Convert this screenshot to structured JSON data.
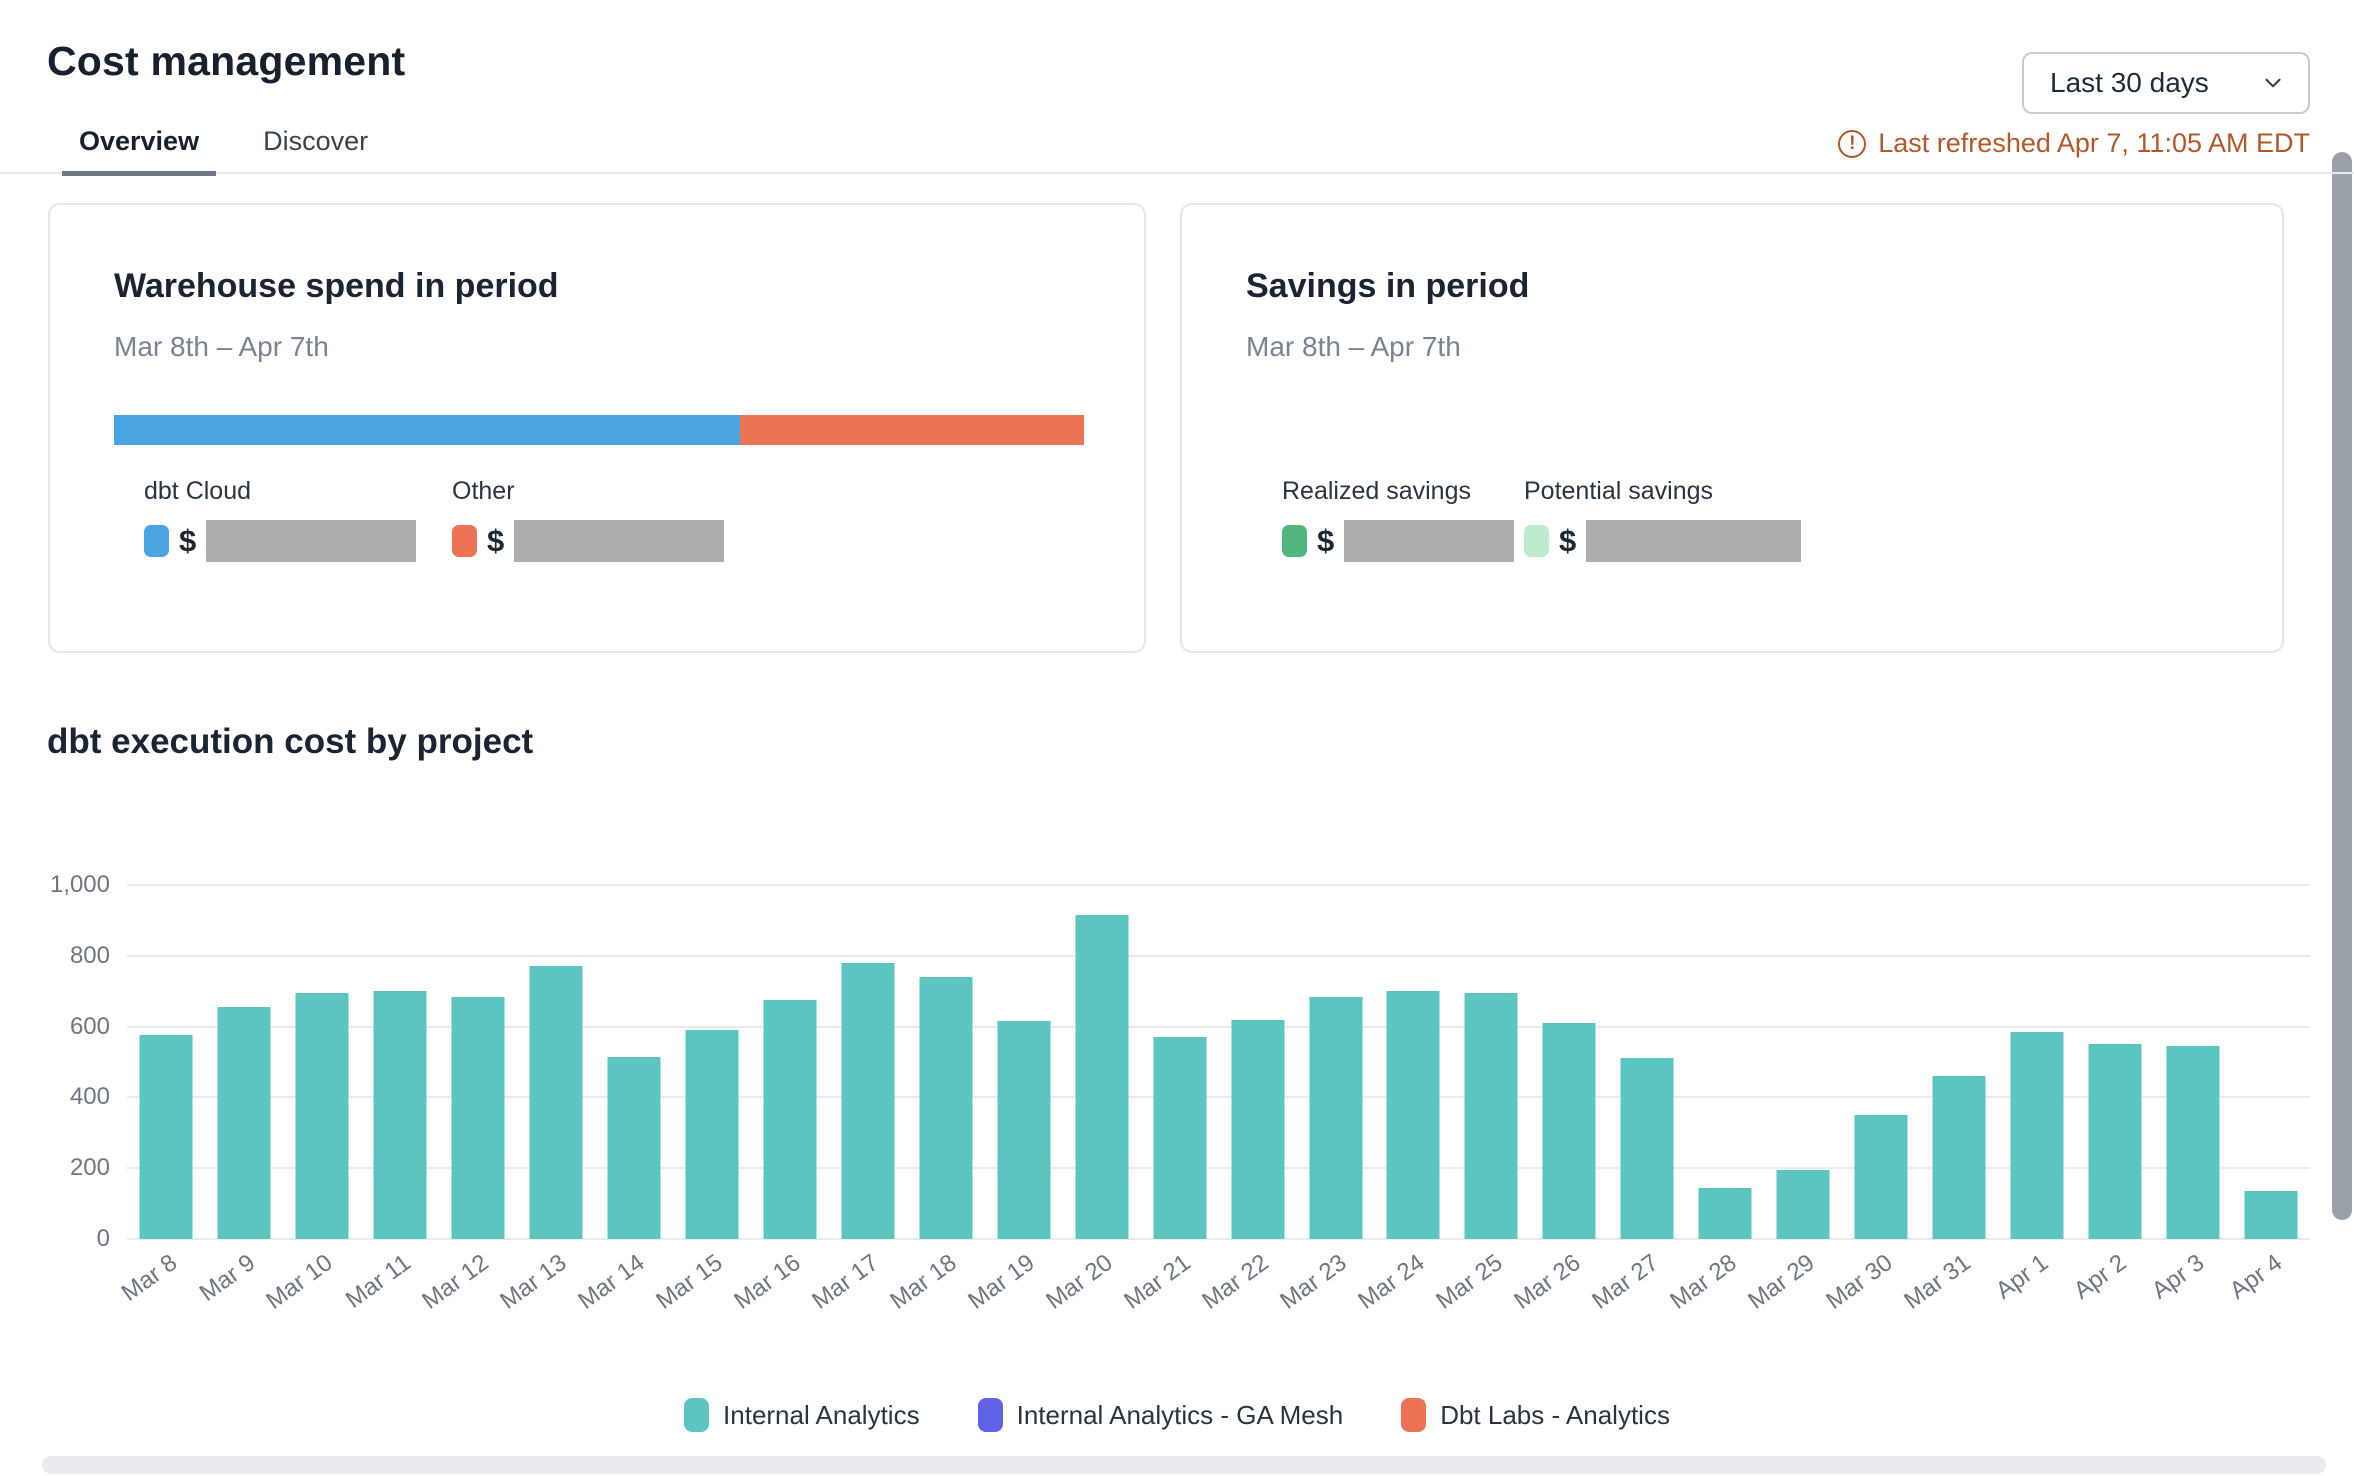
{
  "header": {
    "title": "Cost management",
    "tabs": [
      {
        "label": "Overview",
        "active": true
      },
      {
        "label": "Discover",
        "active": false
      }
    ],
    "range_dropdown": {
      "value": "Last 30 days",
      "chevron_icon": "chevron-down"
    },
    "last_refreshed": "Last refreshed Apr 7, 11:05 AM EDT",
    "warning_icon_glyph": "!"
  },
  "spend_card": {
    "title": "Warehouse spend in period",
    "period": "Mar 8th – Apr 7th",
    "bar_segments": [
      {
        "name": "dbt Cloud",
        "color": "#4ba4e2",
        "width": "64.5%"
      },
      {
        "name": "Other",
        "color": "#ec7355",
        "width": "35.5%"
      }
    ],
    "legend": [
      {
        "label": "dbt Cloud",
        "color": "#4ba4e2",
        "currency": "$",
        "value_redacted": true
      },
      {
        "label": "Other",
        "color": "#ec7355",
        "currency": "$",
        "value_redacted": true
      }
    ]
  },
  "savings_card": {
    "title": "Savings in period",
    "period": "Mar 8th – Apr 7th",
    "legend": [
      {
        "label": "Realized savings",
        "color": "#53b67e",
        "currency": "$",
        "value_redacted": true
      },
      {
        "label": "Potential savings",
        "color": "#bdebcd",
        "currency": "$",
        "value_redacted": true
      }
    ]
  },
  "chart_title": "dbt execution cost by project",
  "chart_data": {
    "type": "bar",
    "title": "dbt execution cost by project",
    "categories": [
      "Mar 8",
      "Mar 9",
      "Mar 10",
      "Mar 11",
      "Mar 12",
      "Mar 13",
      "Mar 14",
      "Mar 15",
      "Mar 16",
      "Mar 17",
      "Mar 18",
      "Mar 19",
      "Mar 20",
      "Mar 21",
      "Mar 22",
      "Mar 23",
      "Mar 24",
      "Mar 25",
      "Mar 26",
      "Mar 27",
      "Mar 28",
      "Mar 29",
      "Mar 30",
      "Mar 31",
      "Apr 1",
      "Apr 2",
      "Apr 3",
      "Apr 4"
    ],
    "values": [
      575,
      655,
      695,
      700,
      685,
      770,
      515,
      590,
      675,
      780,
      740,
      615,
      915,
      570,
      620,
      685,
      700,
      695,
      610,
      510,
      145,
      195,
      350,
      460,
      585,
      550,
      545,
      135
    ],
    "series_name": "Internal Analytics",
    "bar_color": "#5cc5c0",
    "xlabel": "",
    "ylabel": "",
    "ylim": [
      0,
      1000
    ],
    "yticks": [
      0,
      200,
      400,
      600,
      800,
      1000
    ],
    "ytick_labels": [
      "0",
      "200",
      "400",
      "600",
      "800",
      "1,000"
    ],
    "grid": true,
    "legend_position": "bottom",
    "legend": [
      {
        "name": "Internal Analytics",
        "color": "#5cc5c0"
      },
      {
        "name": "Internal Analytics - GA Mesh",
        "color": "#6062e8"
      },
      {
        "name": "Dbt Labs - Analytics",
        "color": "#ec7355"
      }
    ]
  }
}
